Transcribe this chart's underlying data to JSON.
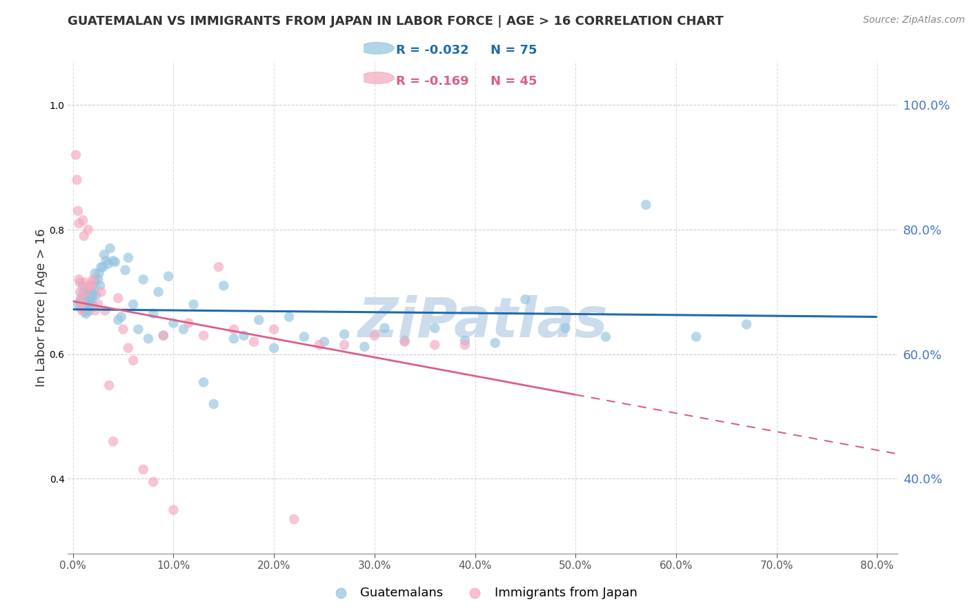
{
  "title": "GUATEMALAN VS IMMIGRANTS FROM JAPAN IN LABOR FORCE | AGE > 16 CORRELATION CHART",
  "source": "Source: ZipAtlas.com",
  "ylabel": "In Labor Force | Age > 16",
  "xlabel_ticks": [
    0.0,
    0.1,
    0.2,
    0.3,
    0.4,
    0.5,
    0.6,
    0.7,
    0.8
  ],
  "ylabel_ticks": [
    0.4,
    0.6,
    0.8,
    1.0
  ],
  "xlim": [
    -0.005,
    0.82
  ],
  "ylim": [
    0.28,
    1.07
  ],
  "legend_labels": [
    "Guatemalans",
    "Immigrants from Japan"
  ],
  "legend_r_blue": "R = -0.032",
  "legend_n_blue": "N = 75",
  "legend_r_pink": "R = -0.169",
  "legend_n_pink": "N = 45",
  "blue_color": "#93c4e0",
  "pink_color": "#f4a7bc",
  "trendline_blue_color": "#1f6aab",
  "trendline_pink_color": "#d95f8a",
  "right_axis_color": "#4575c4",
  "title_color": "#333333",
  "watermark_color": "#cddcec",
  "blue_scatter_x": [
    0.005,
    0.007,
    0.008,
    0.01,
    0.01,
    0.01,
    0.012,
    0.012,
    0.013,
    0.013,
    0.014,
    0.015,
    0.015,
    0.016,
    0.016,
    0.017,
    0.017,
    0.018,
    0.018,
    0.019,
    0.02,
    0.02,
    0.021,
    0.022,
    0.022,
    0.023,
    0.025,
    0.026,
    0.027,
    0.028,
    0.03,
    0.031,
    0.033,
    0.035,
    0.037,
    0.04,
    0.042,
    0.045,
    0.048,
    0.052,
    0.055,
    0.06,
    0.065,
    0.07,
    0.075,
    0.08,
    0.085,
    0.09,
    0.095,
    0.1,
    0.11,
    0.12,
    0.13,
    0.14,
    0.15,
    0.16,
    0.17,
    0.185,
    0.2,
    0.215,
    0.23,
    0.25,
    0.27,
    0.29,
    0.31,
    0.33,
    0.36,
    0.39,
    0.42,
    0.45,
    0.49,
    0.53,
    0.57,
    0.62,
    0.67
  ],
  "blue_scatter_y": [
    0.68,
    0.685,
    0.675,
    0.69,
    0.7,
    0.71,
    0.668,
    0.672,
    0.665,
    0.68,
    0.695,
    0.685,
    0.7,
    0.67,
    0.675,
    0.68,
    0.69,
    0.7,
    0.688,
    0.692,
    0.678,
    0.698,
    0.71,
    0.72,
    0.73,
    0.695,
    0.72,
    0.73,
    0.71,
    0.74,
    0.74,
    0.76,
    0.75,
    0.745,
    0.77,
    0.75,
    0.748,
    0.655,
    0.66,
    0.735,
    0.755,
    0.68,
    0.64,
    0.72,
    0.625,
    0.665,
    0.7,
    0.63,
    0.725,
    0.65,
    0.64,
    0.68,
    0.555,
    0.52,
    0.71,
    0.625,
    0.63,
    0.655,
    0.61,
    0.66,
    0.628,
    0.62,
    0.632,
    0.612,
    0.642,
    0.622,
    0.642,
    0.622,
    0.618,
    0.688,
    0.642,
    0.628,
    0.84,
    0.628,
    0.648
  ],
  "pink_scatter_x": [
    0.003,
    0.004,
    0.005,
    0.006,
    0.006,
    0.007,
    0.007,
    0.008,
    0.008,
    0.009,
    0.01,
    0.011,
    0.012,
    0.013,
    0.015,
    0.016,
    0.018,
    0.02,
    0.022,
    0.025,
    0.028,
    0.032,
    0.036,
    0.04,
    0.045,
    0.05,
    0.055,
    0.06,
    0.07,
    0.08,
    0.09,
    0.1,
    0.115,
    0.13,
    0.145,
    0.16,
    0.18,
    0.2,
    0.22,
    0.245,
    0.27,
    0.3,
    0.33,
    0.36,
    0.39
  ],
  "pink_scatter_y": [
    0.92,
    0.88,
    0.83,
    0.81,
    0.72,
    0.715,
    0.7,
    0.69,
    0.68,
    0.67,
    0.815,
    0.79,
    0.715,
    0.7,
    0.8,
    0.71,
    0.71,
    0.72,
    0.67,
    0.68,
    0.7,
    0.67,
    0.55,
    0.46,
    0.69,
    0.64,
    0.61,
    0.59,
    0.415,
    0.395,
    0.63,
    0.35,
    0.65,
    0.63,
    0.74,
    0.64,
    0.62,
    0.64,
    0.335,
    0.615,
    0.615,
    0.63,
    0.62,
    0.615,
    0.615
  ],
  "trendline_blue_x_start": 0.0,
  "trendline_blue_x_end": 0.8,
  "trendline_blue_y_start": 0.672,
  "trendline_blue_y_end": 0.66,
  "trendline_pink_solid_x_start": 0.0,
  "trendline_pink_solid_x_end": 0.5,
  "trendline_pink_solid_y_start": 0.685,
  "trendline_pink_solid_y_end": 0.535,
  "trendline_pink_dash_x_start": 0.5,
  "trendline_pink_dash_x_end": 0.82,
  "trendline_pink_dash_y_start": 0.535,
  "trendline_pink_dash_y_end": 0.44
}
